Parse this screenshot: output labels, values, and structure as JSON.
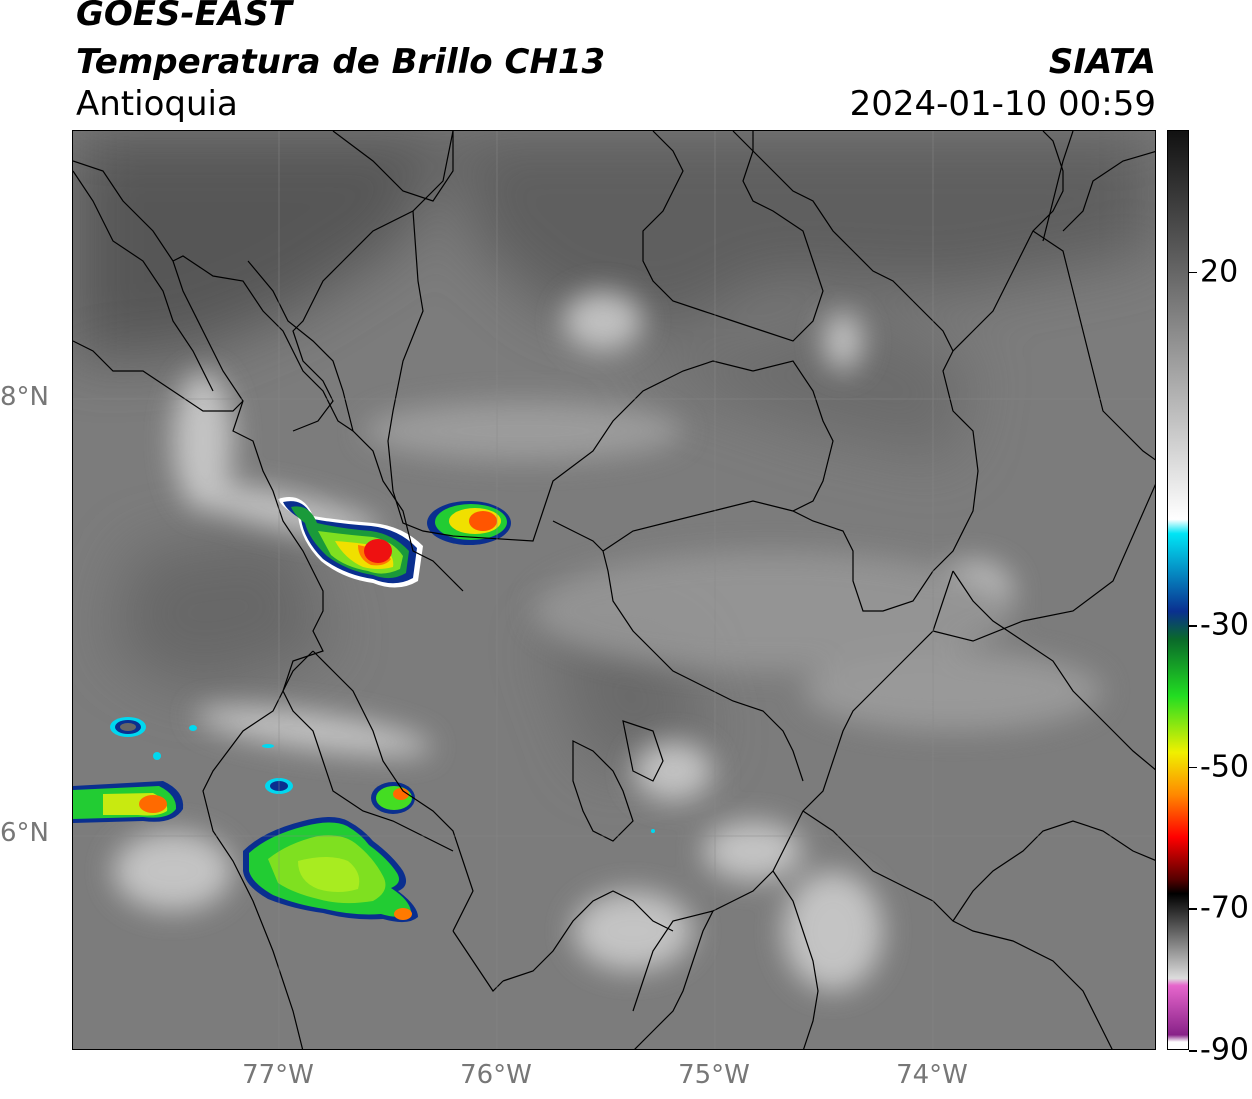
{
  "header": {
    "satellite": "GOES-EAST",
    "product": "Temperatura de Brillo CH13",
    "region": "Antioquia",
    "organization": "SIATA",
    "timestamp": "2024-01-10 00:59"
  },
  "axes": {
    "lat_labels": [
      {
        "label": "8°N",
        "value": 8
      },
      {
        "label": "6°N",
        "value": 6
      }
    ],
    "lon_labels": [
      {
        "label": "77°W",
        "value": -77
      },
      {
        "label": "76°W",
        "value": -76
      },
      {
        "label": "75°W",
        "value": -75
      },
      {
        "label": "74°W",
        "value": -74
      }
    ],
    "lon_range": [
      -77.94,
      -72.98
    ],
    "lat_range": [
      5.0,
      9.22
    ]
  },
  "colorbar": {
    "range": [
      -90,
      40
    ],
    "ticks": [
      {
        "label": "20",
        "value": 20
      },
      {
        "label": "-30",
        "value": -30
      },
      {
        "label": "-50",
        "value": -50
      },
      {
        "label": "-70",
        "value": -70
      },
      {
        "label": "-90",
        "value": -90
      }
    ],
    "stops": [
      {
        "value": 40,
        "color": "#111111"
      },
      {
        "value": 20,
        "color": "#666666"
      },
      {
        "value": -15,
        "color": "#ffffff"
      },
      {
        "value": -17,
        "color": "#00e5f5"
      },
      {
        "value": -28,
        "color": "#0a3090"
      },
      {
        "value": -32,
        "color": "#0a6a2a"
      },
      {
        "value": -40,
        "color": "#22dd22"
      },
      {
        "value": -48,
        "color": "#f0f000"
      },
      {
        "value": -54,
        "color": "#ff8800"
      },
      {
        "value": -60,
        "color": "#ff0000"
      },
      {
        "value": -66,
        "color": "#550000"
      },
      {
        "value": -68,
        "color": "#000000"
      },
      {
        "value": -80,
        "color": "#dddddd"
      },
      {
        "value": -81,
        "color": "#e666cc"
      },
      {
        "value": -88,
        "color": "#882288"
      },
      {
        "value": -89,
        "color": "#ffffff"
      }
    ]
  },
  "colors": {
    "background_gray": "#7a7a7a",
    "land_border": "#000000"
  }
}
